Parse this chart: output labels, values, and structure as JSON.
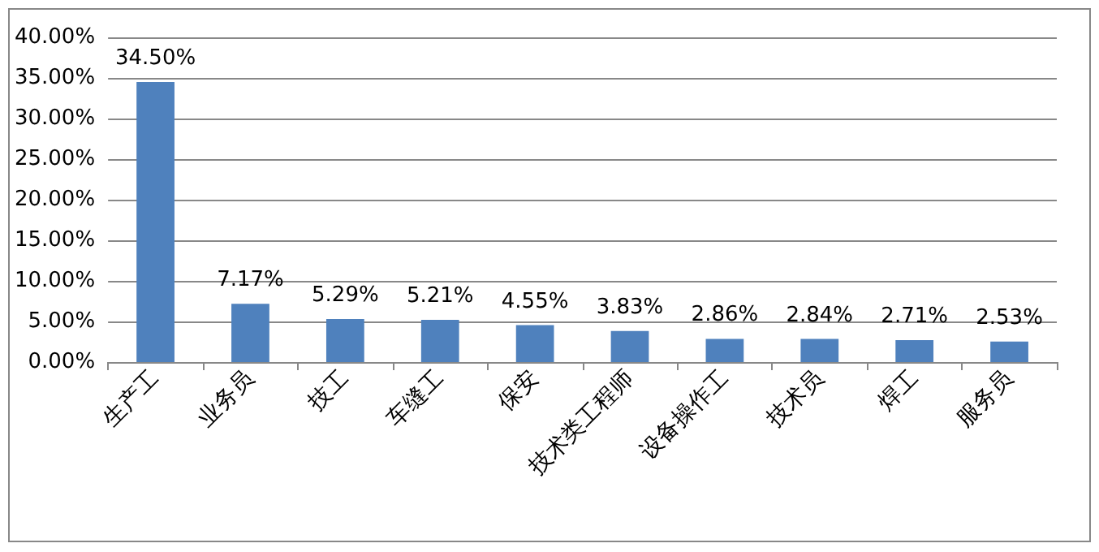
{
  "chart_data": {
    "type": "bar",
    "categories": [
      "生产工",
      "业务员",
      "技工",
      "车缝工",
      "保安",
      "技术类工程师",
      "设备操作工",
      "技术员",
      "焊工",
      "服务员"
    ],
    "values": [
      34.5,
      7.17,
      5.29,
      5.21,
      4.55,
      3.83,
      2.86,
      2.84,
      2.71,
      2.53
    ],
    "value_labels": [
      "34.50%",
      "7.17%",
      "5.29%",
      "5.21%",
      "4.55%",
      "3.83%",
      "2.86%",
      "2.84%",
      "2.71%",
      "2.53%"
    ],
    "color": "#4f81bd",
    "ylim": [
      0,
      40
    ],
    "yticks": [
      {
        "value": 0,
        "label": "0.00%"
      },
      {
        "value": 5,
        "label": "5.00%"
      },
      {
        "value": 10,
        "label": "10.00%"
      },
      {
        "value": 15,
        "label": "15.00%"
      },
      {
        "value": 20,
        "label": "20.00%"
      },
      {
        "value": 25,
        "label": "25.00%"
      },
      {
        "value": 30,
        "label": "30.00%"
      },
      {
        "value": 35,
        "label": "35.00%"
      },
      {
        "value": 40,
        "label": "40.00%"
      }
    ],
    "grid": true
  }
}
